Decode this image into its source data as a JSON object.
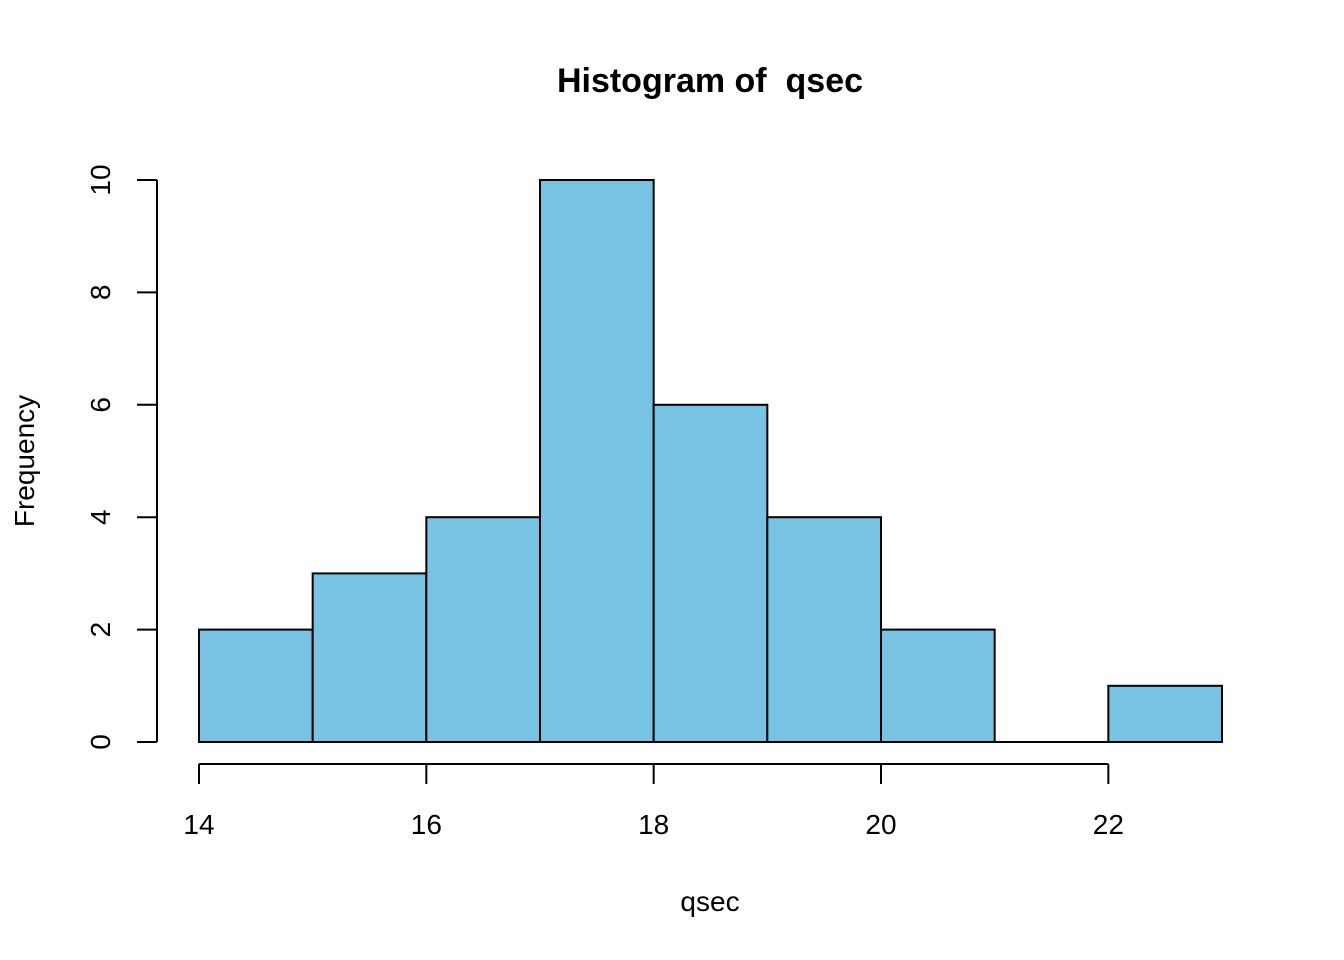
{
  "chart_data": {
    "type": "bar",
    "title": "Histogram of  qsec",
    "xlabel": "qsec",
    "ylabel": "Frequency",
    "bin_edges": [
      14,
      15,
      16,
      17,
      18,
      19,
      20,
      21,
      22,
      23
    ],
    "values": [
      2,
      3,
      4,
      10,
      6,
      4,
      2,
      0,
      1
    ],
    "xlim": [
      14,
      23
    ],
    "ylim": [
      0,
      10
    ],
    "x_ticks": [
      "14",
      "16",
      "18",
      "20",
      "22"
    ],
    "y_ticks": [
      "0",
      "2",
      "4",
      "6",
      "8",
      "10"
    ],
    "grid": false,
    "colors": {
      "bar_fill": "#78C2E4",
      "bar_stroke": "#000000"
    }
  }
}
